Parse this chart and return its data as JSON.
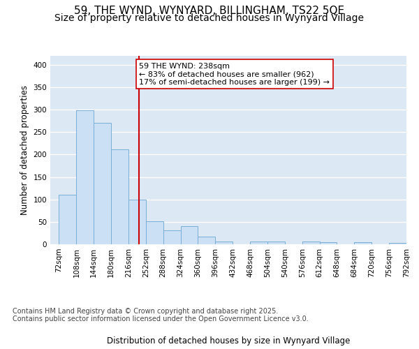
{
  "title_line1": "59, THE WYND, WYNYARD, BILLINGHAM, TS22 5QE",
  "title_line2": "Size of property relative to detached houses in Wynyard Village",
  "xlabel": "Distribution of detached houses by size in Wynyard Village",
  "ylabel": "Number of detached properties",
  "bar_color": "#cce0f5",
  "bar_edge_color": "#7aaed6",
  "background_color": "#dde8f5",
  "vline_color": "#cc0000",
  "vline_x": 238,
  "annotation_text": "59 THE WYND: 238sqm\n← 83% of detached houses are smaller (962)\n17% of semi-detached houses are larger (199) →",
  "annotation_box_color": "#ffffff",
  "annotation_box_edge": "#cc0000",
  "bin_edges": [
    72,
    108,
    144,
    180,
    216,
    252,
    288,
    324,
    360,
    396,
    432,
    468,
    504,
    540,
    576,
    612,
    648,
    684,
    720,
    756,
    792
  ],
  "bar_heights": [
    110,
    298,
    271,
    212,
    100,
    51,
    31,
    41,
    17,
    7,
    0,
    6,
    6,
    0,
    7,
    5,
    0,
    5,
    0,
    3
  ],
  "ylim": [
    0,
    420
  ],
  "yticks": [
    0,
    50,
    100,
    150,
    200,
    250,
    300,
    350,
    400
  ],
  "footer_text": "Contains HM Land Registry data © Crown copyright and database right 2025.\nContains public sector information licensed under the Open Government Licence v3.0.",
  "title_fontsize": 11,
  "subtitle_fontsize": 10,
  "axis_label_fontsize": 8.5,
  "tick_fontsize": 7.5,
  "footer_fontsize": 7,
  "annotation_fontsize": 8
}
